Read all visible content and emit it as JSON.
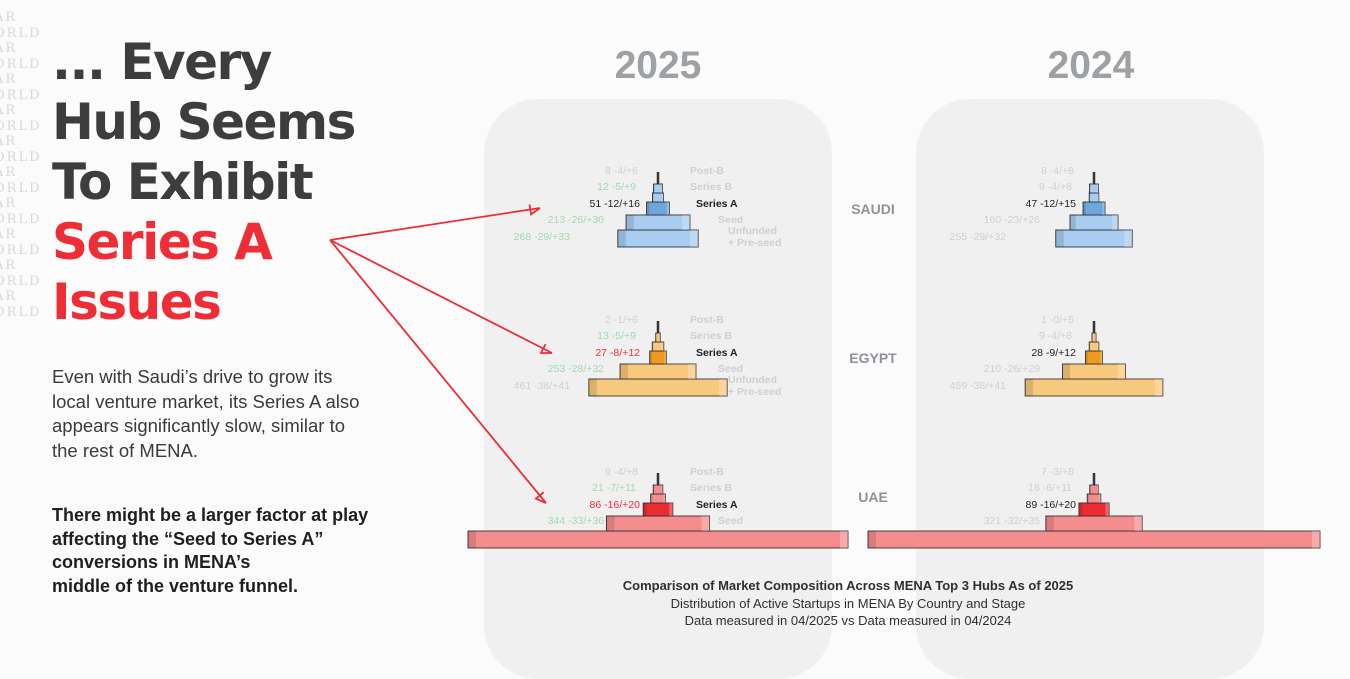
{
  "watermark": [
    "AR",
    "ORLD",
    "AR",
    "ORLD",
    "AR",
    "ORLD",
    "AR",
    "ORLD",
    "AR",
    "ORLD",
    "AR",
    "ORLD",
    "AR",
    "ORLD",
    "AR",
    "ORLD",
    "AR",
    "ORLD",
    "AR",
    "ORLD"
  ],
  "headline": {
    "lines": [
      "... Every",
      "Hub Seems",
      "To Exhibit"
    ],
    "highlight": [
      "Series A",
      "Issues"
    ]
  },
  "body": {
    "paragraph": "Even with Saudi’s drive to grow its local venture market, its Series A also appears significantly slow, similar to the rest of MENA.",
    "bold_lines": [
      "There might be a larger factor at play",
      "affecting the “Seed to Series A”",
      "conversions in MENA’s",
      "middle of the venture funnel."
    ]
  },
  "caption": {
    "title": "Comparison of Market Composition Across MENA Top 3 Hubs As of 2025",
    "line2": "Distribution of Active Startups in MENA By Country and Stage",
    "line3": "Data measured in 04/2025 vs Data measured in 04/2024"
  },
  "colors": {
    "accent_red": "#ee2d37",
    "saudi_fill": "#a9cdf1",
    "saudi_highlight": "#6fa6dd",
    "egypt_fill": "#f8c97c",
    "egypt_highlight": "#ee9a1f",
    "uae_fill": "#f58d8f",
    "uae_highlight": "#ec2c33",
    "faint_label": "#cfcfcf",
    "green_label": "#9fd9b2"
  },
  "chart_data": {
    "type": "bar",
    "title": "Comparison of Market Composition Across MENA Top 3 Hubs As of 2025",
    "subtitle": "Distribution of Active Startups in MENA By Country and Stage",
    "years": [
      "2025",
      "2024"
    ],
    "stages": [
      "Post-B",
      "Series B",
      "Series A",
      "Seed",
      "Unfunded + Pre-seed"
    ],
    "stage_labels": [
      "Post-B",
      "Series B",
      "Series A",
      "Seed",
      "Unfunded",
      "+ Pre-seed"
    ],
    "hubs": [
      {
        "name": "SAUDI",
        "y2025": [
          {
            "stage": "Post-B",
            "count": 8,
            "delta": "-4/+6"
          },
          {
            "stage": "Series B",
            "count": 12,
            "delta": "-5/+9"
          },
          {
            "stage": "Series A",
            "count": 51,
            "delta": "-12/+16"
          },
          {
            "stage": "Seed",
            "count": 213,
            "delta": "-26/+30"
          },
          {
            "stage": "Unfunded + Pre-seed",
            "count": 268,
            "delta": "-29/+33"
          }
        ],
        "y2024": [
          {
            "stage": "Post-B",
            "count": 8,
            "delta": "-4/+8"
          },
          {
            "stage": "Series B",
            "count": 9,
            "delta": "-4/+8"
          },
          {
            "stage": "Series A",
            "count": 47,
            "delta": "-12/+15"
          },
          {
            "stage": "Seed",
            "count": 160,
            "delta": "-23/+26"
          },
          {
            "stage": "Unfunded + Pre-seed",
            "count": 255,
            "delta": "-29/+32"
          }
        ]
      },
      {
        "name": "EGYPT",
        "y2025": [
          {
            "stage": "Post-B",
            "count": 2,
            "delta": "-1/+6"
          },
          {
            "stage": "Series B",
            "count": 13,
            "delta": "-5/+9"
          },
          {
            "stage": "Series A",
            "count": 27,
            "delta": "-8/+12"
          },
          {
            "stage": "Seed",
            "count": 253,
            "delta": "-28/+32"
          },
          {
            "stage": "Unfunded + Pre-seed",
            "count": 461,
            "delta": "-38/+41"
          }
        ],
        "y2024": [
          {
            "stage": "Post-B",
            "count": 1,
            "delta": "-0/+5"
          },
          {
            "stage": "Series B",
            "count": 9,
            "delta": "-4/+8"
          },
          {
            "stage": "Series A",
            "count": 28,
            "delta": "-9/+12"
          },
          {
            "stage": "Seed",
            "count": 210,
            "delta": "-26/+29"
          },
          {
            "stage": "Unfunded + Pre-seed",
            "count": 459,
            "delta": "-38/+41"
          }
        ]
      },
      {
        "name": "UAE",
        "y2025": [
          {
            "stage": "Post-B",
            "count": 9,
            "delta": "-4/+8"
          },
          {
            "stage": "Series B",
            "count": 21,
            "delta": "-7/+11"
          },
          {
            "stage": "Series A",
            "count": 86,
            "delta": "-16/+20"
          },
          {
            "stage": "Seed",
            "count": 344,
            "delta": "-33/+36"
          },
          {
            "stage": "Unfunded + Pre-seed",
            "count": null,
            "delta": null
          }
        ],
        "y2024": [
          {
            "stage": "Post-B",
            "count": 7,
            "delta": "-3/+8"
          },
          {
            "stage": "Series B",
            "count": 18,
            "delta": "-6/+11"
          },
          {
            "stage": "Series A",
            "count": 89,
            "delta": "-16/+20"
          },
          {
            "stage": "Seed",
            "count": 321,
            "delta": "-32/+35"
          },
          {
            "stage": "Unfunded + Pre-seed",
            "count": null,
            "delta": null
          }
        ]
      }
    ]
  }
}
